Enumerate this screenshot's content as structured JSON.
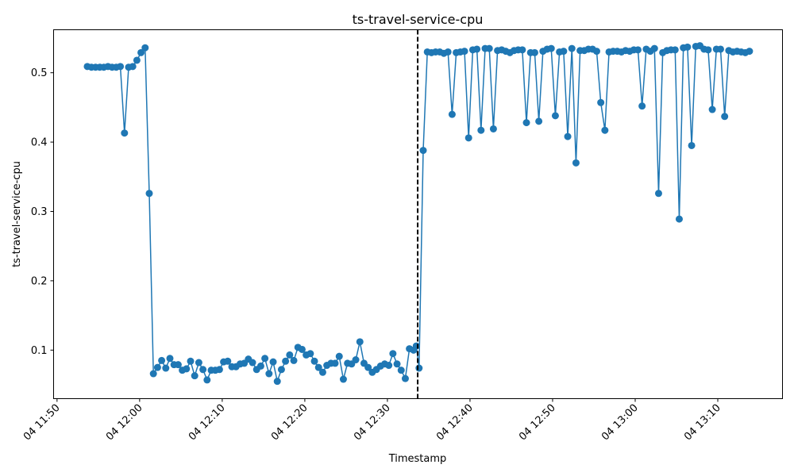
{
  "chart_data": {
    "type": "line",
    "title": "ts-travel-service-cpu",
    "xlabel": "Timestamp",
    "ylabel": "ts-travel-service-cpu",
    "x_ticks": [
      "04 11:50",
      "04 12:00",
      "04 12:10",
      "04 12:20",
      "04 12:30",
      "04 12:40",
      "04 12:50",
      "04 13:00",
      "04 13:10"
    ],
    "y_ticks": [
      "0.1",
      "0.2",
      "0.3",
      "0.4",
      "0.5"
    ],
    "xlim": [
      "11:49:35",
      "13:17:50"
    ],
    "ylim": [
      0.03,
      0.562
    ],
    "grid": false,
    "marker_line_x": "12:33:40",
    "series_color": "#1f77b4",
    "series": [
      {
        "points": [
          [
            "11:53:40",
            0.509
          ],
          [
            "11:54:10",
            0.508
          ],
          [
            "11:54:40",
            0.508
          ],
          [
            "11:55:10",
            0.508
          ],
          [
            "11:55:40",
            0.508
          ],
          [
            "11:56:10",
            0.509
          ],
          [
            "11:56:40",
            0.508
          ],
          [
            "11:57:10",
            0.508
          ],
          [
            "11:57:40",
            0.509
          ],
          [
            "11:58:10",
            0.413
          ],
          [
            "11:58:40",
            0.508
          ],
          [
            "11:59:10",
            0.509
          ],
          [
            "11:59:40",
            0.518
          ],
          [
            "12:00:10",
            0.529
          ],
          [
            "12:00:40",
            0.536
          ],
          [
            "12:01:10",
            0.326
          ],
          [
            "12:01:40",
            0.066
          ],
          [
            "12:02:10",
            0.075
          ],
          [
            "12:02:40",
            0.085
          ],
          [
            "12:03:10",
            0.074
          ],
          [
            "12:03:40",
            0.088
          ],
          [
            "12:04:10",
            0.079
          ],
          [
            "12:04:40",
            0.079
          ],
          [
            "12:05:10",
            0.071
          ],
          [
            "12:05:40",
            0.073
          ],
          [
            "12:06:10",
            0.084
          ],
          [
            "12:06:40",
            0.063
          ],
          [
            "12:07:10",
            0.082
          ],
          [
            "12:07:40",
            0.072
          ],
          [
            "12:08:10",
            0.057
          ],
          [
            "12:08:40",
            0.071
          ],
          [
            "12:09:10",
            0.071
          ],
          [
            "12:09:40",
            0.072
          ],
          [
            "12:10:10",
            0.083
          ],
          [
            "12:10:40",
            0.084
          ],
          [
            "12:11:10",
            0.076
          ],
          [
            "12:11:40",
            0.076
          ],
          [
            "12:12:10",
            0.08
          ],
          [
            "12:12:40",
            0.081
          ],
          [
            "12:13:10",
            0.087
          ],
          [
            "12:13:40",
            0.082
          ],
          [
            "12:14:10",
            0.072
          ],
          [
            "12:14:40",
            0.077
          ],
          [
            "12:15:10",
            0.088
          ],
          [
            "12:15:40",
            0.066
          ],
          [
            "12:16:10",
            0.083
          ],
          [
            "12:16:40",
            0.055
          ],
          [
            "12:17:10",
            0.072
          ],
          [
            "12:17:40",
            0.084
          ],
          [
            "12:18:10",
            0.093
          ],
          [
            "12:18:40",
            0.085
          ],
          [
            "12:19:10",
            0.104
          ],
          [
            "12:19:40",
            0.101
          ],
          [
            "12:20:10",
            0.093
          ],
          [
            "12:20:40",
            0.095
          ],
          [
            "12:21:10",
            0.084
          ],
          [
            "12:21:40",
            0.075
          ],
          [
            "12:22:10",
            0.068
          ],
          [
            "12:22:40",
            0.078
          ],
          [
            "12:23:10",
            0.081
          ],
          [
            "12:23:40",
            0.081
          ],
          [
            "12:24:10",
            0.091
          ],
          [
            "12:24:40",
            0.058
          ],
          [
            "12:25:10",
            0.081
          ],
          [
            "12:25:40",
            0.08
          ],
          [
            "12:26:10",
            0.086
          ],
          [
            "12:26:40",
            0.112
          ],
          [
            "12:27:10",
            0.081
          ],
          [
            "12:27:40",
            0.075
          ],
          [
            "12:28:10",
            0.068
          ],
          [
            "12:28:40",
            0.072
          ],
          [
            "12:29:10",
            0.077
          ],
          [
            "12:29:40",
            0.08
          ],
          [
            "12:30:10",
            0.078
          ],
          [
            "12:30:40",
            0.095
          ],
          [
            "12:31:10",
            0.08
          ],
          [
            "12:31:40",
            0.071
          ],
          [
            "12:32:10",
            0.059
          ],
          [
            "12:32:40",
            0.102
          ],
          [
            "12:33:10",
            0.1
          ],
          [
            "12:33:30",
            0.106
          ],
          [
            "12:33:50",
            0.074
          ],
          [
            "12:34:20",
            0.388
          ],
          [
            "12:34:50",
            0.53
          ],
          [
            "12:35:20",
            0.529
          ],
          [
            "12:35:50",
            0.53
          ],
          [
            "12:36:20",
            0.53
          ],
          [
            "12:36:50",
            0.528
          ],
          [
            "12:37:20",
            0.53
          ],
          [
            "12:37:50",
            0.44
          ],
          [
            "12:38:20",
            0.529
          ],
          [
            "12:38:50",
            0.53
          ],
          [
            "12:39:20",
            0.531
          ],
          [
            "12:39:50",
            0.406
          ],
          [
            "12:40:20",
            0.533
          ],
          [
            "12:40:50",
            0.534
          ],
          [
            "12:41:20",
            0.417
          ],
          [
            "12:41:50",
            0.535
          ],
          [
            "12:42:20",
            0.535
          ],
          [
            "12:42:50",
            0.419
          ],
          [
            "12:43:20",
            0.532
          ],
          [
            "12:43:50",
            0.533
          ],
          [
            "12:44:20",
            0.531
          ],
          [
            "12:44:50",
            0.529
          ],
          [
            "12:45:20",
            0.532
          ],
          [
            "12:45:50",
            0.533
          ],
          [
            "12:46:20",
            0.533
          ],
          [
            "12:46:50",
            0.428
          ],
          [
            "12:47:20",
            0.529
          ],
          [
            "12:47:50",
            0.529
          ],
          [
            "12:48:20",
            0.43
          ],
          [
            "12:48:50",
            0.531
          ],
          [
            "12:49:20",
            0.534
          ],
          [
            "12:49:50",
            0.535
          ],
          [
            "12:50:20",
            0.438
          ],
          [
            "12:50:50",
            0.53
          ],
          [
            "12:51:20",
            0.531
          ],
          [
            "12:51:50",
            0.408
          ],
          [
            "12:52:20",
            0.535
          ],
          [
            "12:52:50",
            0.37
          ],
          [
            "12:53:20",
            0.532
          ],
          [
            "12:53:50",
            0.532
          ],
          [
            "12:54:20",
            0.534
          ],
          [
            "12:54:50",
            0.534
          ],
          [
            "12:55:20",
            0.531
          ],
          [
            "12:55:50",
            0.457
          ],
          [
            "12:56:20",
            0.417
          ],
          [
            "12:56:50",
            0.53
          ],
          [
            "12:57:20",
            0.531
          ],
          [
            "12:57:50",
            0.531
          ],
          [
            "12:58:20",
            0.53
          ],
          [
            "12:58:50",
            0.532
          ],
          [
            "12:59:20",
            0.531
          ],
          [
            "12:59:50",
            0.533
          ],
          [
            "13:00:20",
            0.533
          ],
          [
            "13:00:50",
            0.452
          ],
          [
            "13:01:20",
            0.534
          ],
          [
            "13:01:50",
            0.531
          ],
          [
            "13:02:20",
            0.535
          ],
          [
            "13:02:50",
            0.326
          ],
          [
            "13:03:20",
            0.529
          ],
          [
            "13:03:50",
            0.532
          ],
          [
            "13:04:20",
            0.533
          ],
          [
            "13:04:50",
            0.533
          ],
          [
            "13:05:20",
            0.289
          ],
          [
            "13:05:50",
            0.536
          ],
          [
            "13:06:20",
            0.537
          ],
          [
            "13:06:50",
            0.395
          ],
          [
            "13:07:20",
            0.538
          ],
          [
            "13:07:50",
            0.539
          ],
          [
            "13:08:20",
            0.534
          ],
          [
            "13:08:50",
            0.533
          ],
          [
            "13:09:20",
            0.447
          ],
          [
            "13:09:50",
            0.534
          ],
          [
            "13:10:20",
            0.534
          ],
          [
            "13:10:50",
            0.437
          ],
          [
            "13:11:20",
            0.532
          ],
          [
            "13:11:50",
            0.53
          ],
          [
            "13:12:20",
            0.531
          ],
          [
            "13:12:50",
            0.53
          ],
          [
            "13:13:20",
            0.529
          ],
          [
            "13:13:50",
            0.531
          ]
        ]
      }
    ]
  }
}
